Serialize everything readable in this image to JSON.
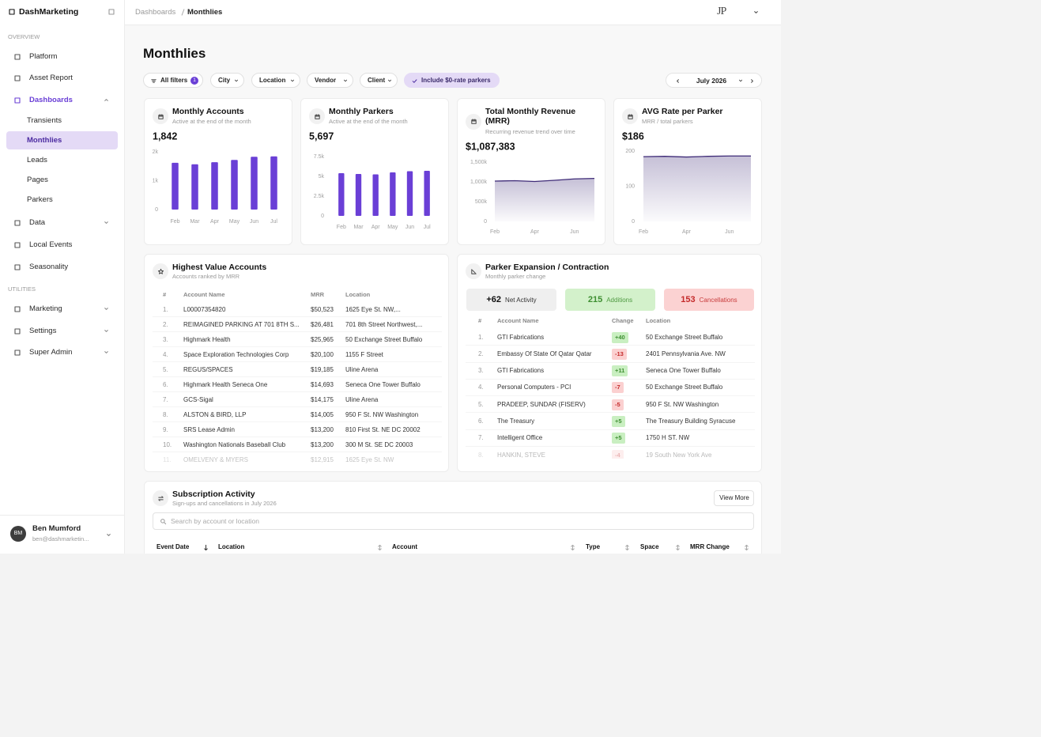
{
  "sidebar": {
    "brand": "DashMarketing",
    "overview_label": "OVERVIEW",
    "overview": [
      "Platform",
      "Asset Report",
      "Dashboards"
    ],
    "dashboards": [
      "Transients",
      "Monthlies",
      "Leads",
      "Pages",
      "Parkers"
    ],
    "more": [
      "Data",
      "Local Events",
      "Seasonality"
    ],
    "utilities_label": "UTILITIES",
    "utilities": [
      "Marketing",
      "Settings",
      "Super Admin"
    ],
    "user": {
      "initials": "BM",
      "name": "Ben Mumford",
      "email": "ben@dashmarketin..."
    }
  },
  "header": {
    "breadcrumb": [
      "Dashboards",
      "Monthlies"
    ],
    "logo": "JP"
  },
  "page_title": "Monthlies",
  "filters": {
    "all": "All filters",
    "count": 1,
    "dropdowns": [
      "City",
      "Location",
      "Vendor",
      "Client"
    ],
    "toggle": "Include $0-rate parkers",
    "period": "July 2026"
  },
  "kpis": [
    {
      "title": "Monthly Accounts",
      "subtitle": "Active at the end of the month",
      "value": "1,842",
      "chart": {
        "type": "bar",
        "categories": [
          "Feb",
          "Mar",
          "Apr",
          "May",
          "Jun",
          "Jul"
        ],
        "values": [
          1620,
          1570,
          1640,
          1720,
          1830,
          1842
        ],
        "color": "#6a3fd6",
        "ylim": [
          0,
          2000
        ],
        "yticks": [
          0,
          {
            "value": 1000,
            "label": "1k"
          },
          {
            "value": 2000,
            "label": "2k"
          }
        ]
      }
    },
    {
      "title": "Monthly Parkers",
      "subtitle": "Active at the end of the month",
      "value": "5,697",
      "chart": {
        "type": "bar",
        "categories": [
          "Feb",
          "Mar",
          "Apr",
          "May",
          "Jun",
          "Jul"
        ],
        "values": [
          5400,
          5300,
          5250,
          5500,
          5650,
          5697
        ],
        "color": "#6a3fd6",
        "ylim": [
          0,
          7500
        ],
        "yticks": [
          0,
          {
            "value": 2500,
            "label": "2.5k"
          },
          {
            "value": 5000,
            "label": "5k"
          },
          {
            "value": 7500,
            "label": "7.5k"
          }
        ]
      }
    },
    {
      "title": "Total Monthly Revenue (MRR)",
      "subtitle": "Recurring revenue trend over time",
      "value": "$1,087,383",
      "chart": {
        "type": "area",
        "categories": [
          "Feb",
          null,
          "Apr",
          null,
          "Jun",
          null
        ],
        "values": [
          1020000,
          1030000,
          1010000,
          1040000,
          1075000,
          1087383
        ],
        "color": "#3f2c78",
        "ylim": [
          0,
          1500000
        ],
        "yticks": [
          0,
          {
            "value": 500000,
            "label": "500k"
          },
          {
            "value": 1000000,
            "label": "1,000k"
          },
          {
            "value": 1500000,
            "label": "1,500k"
          }
        ]
      }
    },
    {
      "title": "AVG Rate per Parker",
      "subtitle": "MRR / total parkers",
      "value": "$186",
      "chart": {
        "type": "area",
        "categories": [
          "Feb",
          null,
          "Apr",
          null,
          "Jun",
          null
        ],
        "values": [
          184,
          185,
          183,
          185,
          186,
          186
        ],
        "color": "#3f2c78",
        "ylim": [
          0,
          200
        ],
        "yticks": [
          0,
          100,
          200
        ]
      }
    }
  ],
  "top_accounts": {
    "title": "Highest Value Accounts",
    "subtitle": "Accounts ranked by MRR",
    "columns": [
      "#",
      "Account Name",
      "MRR",
      "Location"
    ],
    "rows": [
      [
        "1.",
        "L00007354820",
        "$50,523",
        "1625 Eye St. NW,..."
      ],
      [
        "2.",
        "REIMAGINED PARKING AT 701 8TH S...",
        "$26,481",
        "701 8th Street Northwest,..."
      ],
      [
        "3.",
        "Highmark Health",
        "$25,965",
        "50 Exchange Street Buffalo"
      ],
      [
        "4.",
        "Space Exploration Technologies Corp",
        "$20,100",
        "1155 F Street"
      ],
      [
        "5.",
        "REGUS/SPACES",
        "$19,185",
        "Uline Arena"
      ],
      [
        "6.",
        "Highmark Health Seneca One",
        "$14,693",
        "Seneca One Tower Buffalo"
      ],
      [
        "7.",
        "GCS-Sigal",
        "$14,175",
        "Uline Arena"
      ],
      [
        "8.",
        "ALSTON & BIRD, LLP",
        "$14,005",
        "950 F St. NW Washington"
      ],
      [
        "9.",
        "SRS Lease Admin",
        "$13,200",
        "810 First St. NE DC 20002"
      ],
      [
        "10.",
        "Washington Nationals Baseball Club",
        "$13,200",
        "300 M St. SE DC 20003"
      ],
      [
        "11.",
        "OMELVENY & MYERS",
        "$12,915",
        "1625 Eye St. NW"
      ]
    ]
  },
  "parker_change": {
    "title": "Parker Expansion / Contraction",
    "subtitle": "Monthly parker change",
    "stats": [
      {
        "value": "+62",
        "label": "Net Activity"
      },
      {
        "value": "215",
        "label": "Additions"
      },
      {
        "value": "153",
        "label": "Cancellations"
      }
    ],
    "columns": [
      "#",
      "Account Name",
      "Change",
      "Location"
    ],
    "rows": [
      [
        "1.",
        "GTI Fabrications",
        "+40",
        "50 Exchange Street Buffalo"
      ],
      [
        "2.",
        "Embassy Of State Of Qatar Qatar",
        "-13",
        "2401 Pennsylvania Ave. NW"
      ],
      [
        "3.",
        "GTI Fabrications",
        "+11",
        "Seneca One Tower Buffalo"
      ],
      [
        "4.",
        "Personal Computers - PCI",
        "-7",
        "50 Exchange Street Buffalo"
      ],
      [
        "5.",
        "PRADEEP, SUNDAR (FISERV)",
        "-5",
        "950 F St. NW Washington"
      ],
      [
        "6.",
        "The Treasury",
        "+5",
        "The Treasury Building Syracuse"
      ],
      [
        "7.",
        "Intelligent Office",
        "+5",
        "1750 H ST. NW"
      ],
      [
        "8.",
        "HANKIN, STEVE",
        "-4",
        "19 South New York Ave"
      ]
    ]
  },
  "subscriptions": {
    "title": "Subscription Activity",
    "subtitle": "Sign-ups and cancellations in July 2026",
    "button": "View More",
    "search_placeholder": "Search by account or location",
    "columns": [
      "Event Date",
      "Location",
      "Account",
      "Type",
      "Space",
      "MRR Change"
    ]
  }
}
